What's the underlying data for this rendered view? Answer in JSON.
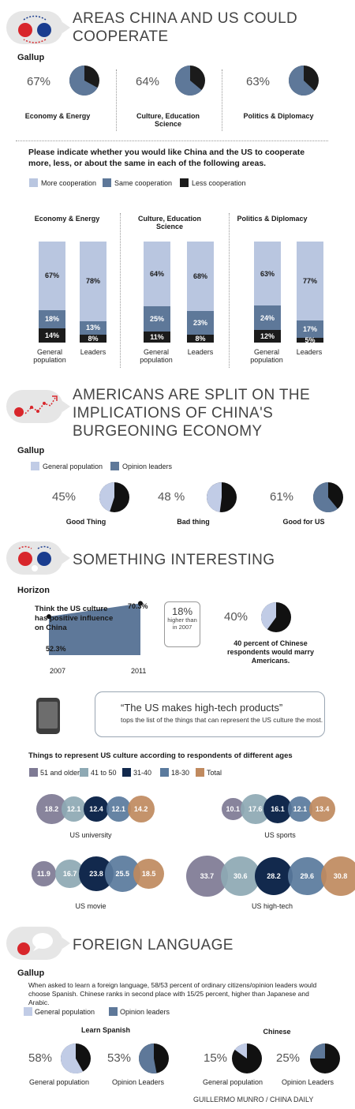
{
  "colors": {
    "more": "#b9c6e0",
    "same": "#5e7899",
    "less": "#1b1b1b",
    "light": "#c1cce6",
    "dark": "#111111",
    "age51": "#7e7a94",
    "age41": "#8ea9b4",
    "age31": "#12294d",
    "age18": "#5a7a9d",
    "total": "#c08a5f"
  },
  "section1": {
    "title": "AREAS CHINA AND US COULD COOPERATE",
    "source": "Gallup",
    "pies": [
      {
        "pct": "67%",
        "value": 67,
        "label": "Economy & Energy"
      },
      {
        "pct": "64%",
        "value": 64,
        "label": "Culture, Education Science"
      },
      {
        "pct": "63%",
        "value": 63,
        "label": "Politics & Diplomacy"
      }
    ],
    "question": "Please indicate whether you would like China and the US to cooperate more, less, or about the same in each of the following areas.",
    "legend": [
      "More cooperation",
      "Same cooperation",
      "Less cooperation"
    ],
    "groups": [
      {
        "title": "Economy & Energy",
        "bars": [
          {
            "label": "General population",
            "more": "67%",
            "same": "18%",
            "less": "14%"
          },
          {
            "label": "Leaders",
            "more": "78%",
            "same": "13%",
            "less": "8%"
          }
        ]
      },
      {
        "title": "Culture, Education Science",
        "bars": [
          {
            "label": "General population",
            "more": "64%",
            "same": "25%",
            "less": "11%"
          },
          {
            "label": "Leaders",
            "more": "68%",
            "same": "23%",
            "less": "8%"
          }
        ]
      },
      {
        "title": "Politics & Diplomacy",
        "bars": [
          {
            "label": "General population",
            "more": "63%",
            "same": "24%",
            "less": "12%"
          },
          {
            "label": "Leaders",
            "more": "77%",
            "same": "17%",
            "less": "5%"
          }
        ]
      }
    ]
  },
  "section2": {
    "title": "AMERICANS ARE SPLIT ON THE IMPLICATIONS OF CHINA'S BURGEONING ECONOMY",
    "source": "Gallup",
    "legend": [
      "General population",
      "Opinion leaders"
    ],
    "pies": [
      {
        "pct": "45%",
        "value": 45,
        "label": "Good Thing"
      },
      {
        "pct": "48 %",
        "value": 48,
        "label": "Bad thing"
      },
      {
        "pct": "61%",
        "value": 61,
        "label": "Good for US"
      }
    ]
  },
  "section3": {
    "title": "SOMETHING INTERESTING",
    "source": "Horizon",
    "area_title": "Think the US culture has positive influence on China",
    "start_label": "52.3%",
    "end_label": "70.3%",
    "x_start": "2007",
    "x_end": "2011",
    "callout_big": "18%",
    "callout_small": "higher than in 2007",
    "pie_pct": "40%",
    "pie_value": 40,
    "pie_caption": "40 percent of Chinese respondents would marry Americans.",
    "quote": "“The US makes high-tech products”",
    "quote_sub": "tops the list of the things that can represent the US culture the most.",
    "bubbles_title": "Things to represent US culture according to respondents of different ages",
    "age_legend": [
      "51 and older",
      "41 to 50",
      "31-40",
      "18-30",
      "Total"
    ]
  },
  "chart_data": [
    {
      "type": "pie",
      "title": "AREAS CHINA AND US COULD COOPERATE",
      "categories": [
        "Economy & Energy",
        "Culture, Education Science",
        "Politics & Diplomacy"
      ],
      "values": [
        67,
        64,
        63
      ]
    },
    {
      "type": "bar",
      "stacked": true,
      "title": "Please indicate whether you would like China and the US to cooperate more, less, or about the same in each of the following areas.",
      "categories": [
        "Economy & Energy - General population",
        "Economy & Energy - Leaders",
        "Culture, Education Science - General population",
        "Culture, Education Science - Leaders",
        "Politics & Diplomacy - General population",
        "Politics & Diplomacy - Leaders"
      ],
      "series": [
        {
          "name": "More cooperation",
          "values": [
            67,
            78,
            64,
            68,
            63,
            77
          ]
        },
        {
          "name": "Same cooperation",
          "values": [
            18,
            13,
            25,
            23,
            24,
            17
          ]
        },
        {
          "name": "Less cooperation",
          "values": [
            14,
            8,
            11,
            8,
            12,
            5
          ]
        }
      ]
    },
    {
      "type": "pie",
      "title": "AMERICANS ARE SPLIT ON THE IMPLICATIONS OF CHINA'S BURGEONING ECONOMY",
      "categories": [
        "Good Thing",
        "Bad thing",
        "Good for US"
      ],
      "values": [
        45,
        48,
        61
      ]
    },
    {
      "type": "area",
      "title": "Think the US culture has positive influence on China",
      "x": [
        "2007",
        "2011"
      ],
      "values": [
        52.3,
        70.3
      ]
    },
    {
      "type": "pie",
      "categories": [
        "would marry Americans"
      ],
      "values": [
        40
      ]
    },
    {
      "type": "bubble",
      "title": "Things to represent US culture according to respondents of different ages",
      "categories": [
        "US university",
        "US sports",
        "US movie",
        "US high-tech"
      ],
      "series": [
        {
          "name": "51 and older",
          "values": [
            18.2,
            10.1,
            11.9,
            33.7
          ]
        },
        {
          "name": "41 to 50",
          "values": [
            12.1,
            17.6,
            16.7,
            30.6
          ]
        },
        {
          "name": "31-40",
          "values": [
            12.4,
            16.1,
            23.8,
            28.2
          ]
        },
        {
          "name": "18-30",
          "values": [
            12.1,
            12.1,
            25.5,
            29.6
          ]
        },
        {
          "name": "Total",
          "values": [
            14.2,
            13.4,
            18.5,
            30.8
          ]
        }
      ]
    },
    {
      "type": "pie",
      "title": "Learn Spanish",
      "categories": [
        "General population",
        "Opinion Leaders"
      ],
      "values": [
        58,
        53
      ]
    },
    {
      "type": "pie",
      "title": "Chinese",
      "categories": [
        "General population",
        "Opinion Leaders"
      ],
      "values": [
        15,
        25
      ]
    }
  ],
  "bubble_groups": [
    {
      "label": "US university",
      "values": [
        "18.2",
        "12.1",
        "12.4",
        "12.1",
        "14.2"
      ]
    },
    {
      "label": "US sports",
      "values": [
        "10.1",
        "17.6",
        "16.1",
        "12.1",
        "13.4"
      ]
    },
    {
      "label": "US movie",
      "values": [
        "11.9",
        "16.7",
        "23.8",
        "25.5",
        "18.5"
      ]
    },
    {
      "label": "US high-tech",
      "values": [
        "33.7",
        "30.6",
        "28.2",
        "29.6",
        "30.8"
      ]
    }
  ],
  "section4": {
    "title": "FOREIGN LANGUAGE",
    "source": "Gallup",
    "body": "When asked to learn a foreign language, 58/53 percent of ordinary citizens/opinion leaders would choose Spanish. Chinese ranks in second place with 15/25 percent, higher than Japanese and Arabic.",
    "legend": [
      "General population",
      "Opinion leaders"
    ],
    "spanish_title": "Learn Spanish",
    "chinese_title": "Chinese",
    "pies": [
      {
        "pct": "58%",
        "value": 58,
        "label": "General population"
      },
      {
        "pct": "53%",
        "value": 53,
        "label": "Opinion Leaders"
      },
      {
        "pct": "15%",
        "value": 15,
        "label": "General population"
      },
      {
        "pct": "25%",
        "value": 25,
        "label": "Opinion Leaders"
      }
    ]
  },
  "credit": "GUILLERMO MUNRO / CHINA DAILY"
}
